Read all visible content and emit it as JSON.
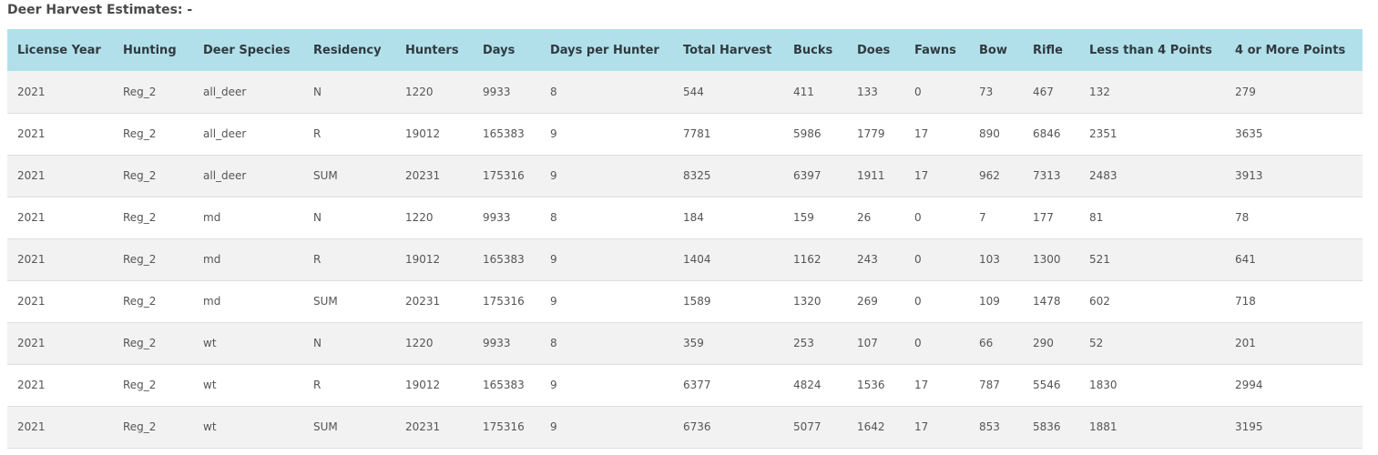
{
  "title": "Deer Harvest Estimates: -",
  "table": {
    "columns": [
      "License Year",
      "Hunting",
      "Deer Species",
      "Residency",
      "Hunters",
      "Days",
      "Days per Hunter",
      "Total Harvest",
      "Bucks",
      "Does",
      "Fawns",
      "Bow",
      "Rifle",
      "Less than 4 Points",
      "4 or More Points"
    ],
    "rows": [
      [
        "2021",
        "Reg_2",
        "all_deer",
        "N",
        "1220",
        "9933",
        "8",
        "544",
        "411",
        "133",
        "0",
        "73",
        "467",
        "132",
        "279"
      ],
      [
        "2021",
        "Reg_2",
        "all_deer",
        "R",
        "19012",
        "165383",
        "9",
        "7781",
        "5986",
        "1779",
        "17",
        "890",
        "6846",
        "2351",
        "3635"
      ],
      [
        "2021",
        "Reg_2",
        "all_deer",
        "SUM",
        "20231",
        "175316",
        "9",
        "8325",
        "6397",
        "1911",
        "17",
        "962",
        "7313",
        "2483",
        "3913"
      ],
      [
        "2021",
        "Reg_2",
        "md",
        "N",
        "1220",
        "9933",
        "8",
        "184",
        "159",
        "26",
        "0",
        "7",
        "177",
        "81",
        "78"
      ],
      [
        "2021",
        "Reg_2",
        "md",
        "R",
        "19012",
        "165383",
        "9",
        "1404",
        "1162",
        "243",
        "0",
        "103",
        "1300",
        "521",
        "641"
      ],
      [
        "2021",
        "Reg_2",
        "md",
        "SUM",
        "20231",
        "175316",
        "9",
        "1589",
        "1320",
        "269",
        "0",
        "109",
        "1478",
        "602",
        "718"
      ],
      [
        "2021",
        "Reg_2",
        "wt",
        "N",
        "1220",
        "9933",
        "8",
        "359",
        "253",
        "107",
        "0",
        "66",
        "290",
        "52",
        "201"
      ],
      [
        "2021",
        "Reg_2",
        "wt",
        "R",
        "19012",
        "165383",
        "9",
        "6377",
        "4824",
        "1536",
        "17",
        "787",
        "5546",
        "1830",
        "2994"
      ],
      [
        "2021",
        "Reg_2",
        "wt",
        "SUM",
        "20231",
        "175316",
        "9",
        "6736",
        "5077",
        "1642",
        "17",
        "853",
        "5836",
        "1881",
        "3195"
      ]
    ]
  }
}
